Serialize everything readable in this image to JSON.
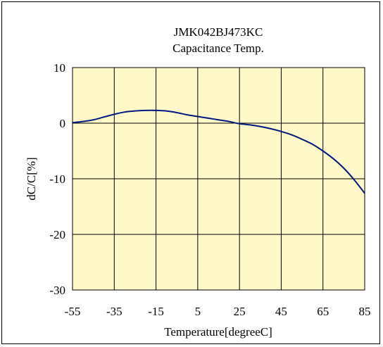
{
  "chart_data": {
    "type": "line",
    "title": "JMK042BJ473KC",
    "subtitle": "Capacitance Temp.",
    "xlabel": "Temperature[degreeC]",
    "ylabel": "dC/C[%]",
    "xlim": [
      -55,
      85
    ],
    "ylim": [
      -30,
      10
    ],
    "x_ticks": [
      -55,
      -35,
      -15,
      5,
      25,
      45,
      65,
      85
    ],
    "y_ticks": [
      10,
      0,
      -10,
      -20,
      -30
    ],
    "x_tick_labels": [
      "-55",
      "-35",
      "-15",
      "5",
      "25",
      "45",
      "65",
      "85"
    ],
    "y_tick_labels": [
      "10",
      "0",
      "-10",
      "-20",
      "-30"
    ],
    "grid": true,
    "legend": "none",
    "colors": {
      "plot_bg": "#fff8c8",
      "line": "#001a80",
      "grid": "#000000"
    },
    "series": [
      {
        "x": [
          -55,
          -50,
          -45,
          -40,
          -35,
          -30,
          -25,
          -20,
          -15,
          -10,
          -5,
          0,
          5,
          10,
          15,
          20,
          25,
          30,
          35,
          40,
          45,
          50,
          55,
          60,
          65,
          70,
          75,
          80,
          85
        ],
        "values": [
          0.1,
          0.3,
          0.6,
          1.1,
          1.6,
          2.0,
          2.2,
          2.3,
          2.3,
          2.2,
          1.9,
          1.5,
          1.2,
          0.9,
          0.6,
          0.3,
          -0.1,
          -0.3,
          -0.6,
          -1.0,
          -1.5,
          -2.1,
          -2.9,
          -3.8,
          -5.0,
          -6.4,
          -8.1,
          -10.2,
          -12.6
        ]
      }
    ]
  }
}
